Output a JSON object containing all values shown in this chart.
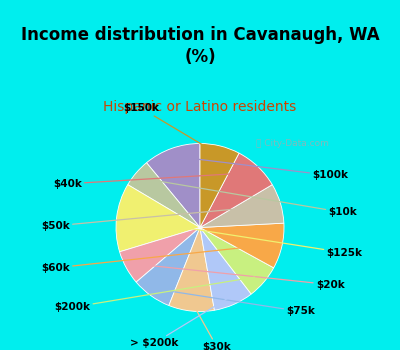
{
  "title": "Income distribution in Cavanaugh, WA\n(%)",
  "subtitle": "Hispanic or Latino residents",
  "bg_cyan": "#00eeee",
  "bg_chart": "#dff5e8",
  "segments": [
    {
      "label": "$100k",
      "value": 10,
      "color": "#a08fc8"
    },
    {
      "label": "$10k",
      "value": 5,
      "color": "#b8c8a0"
    },
    {
      "label": "$125k",
      "value": 12,
      "color": "#f0f070"
    },
    {
      "label": "$20k",
      "value": 6,
      "color": "#f0a0aa"
    },
    {
      "label": "$75k",
      "value": 7,
      "color": "#90b8e8"
    },
    {
      "label": "$30k",
      "value": 8,
      "color": "#f0c890"
    },
    {
      "label": "> $200k",
      "value": 7,
      "color": "#b0c8f8"
    },
    {
      "label": "$200k",
      "value": 6,
      "color": "#c8f080"
    },
    {
      "label": "$60k",
      "value": 8,
      "color": "#f8a848"
    },
    {
      "label": "$50k",
      "value": 7,
      "color": "#c8c0a8"
    },
    {
      "label": "$40k",
      "value": 8,
      "color": "#e07878"
    },
    {
      "label": "$150k",
      "value": 7,
      "color": "#c89828"
    }
  ],
  "title_fontsize": 12,
  "subtitle_fontsize": 10,
  "label_fontsize": 7.5,
  "watermark": "ⓘ City-Data.com"
}
